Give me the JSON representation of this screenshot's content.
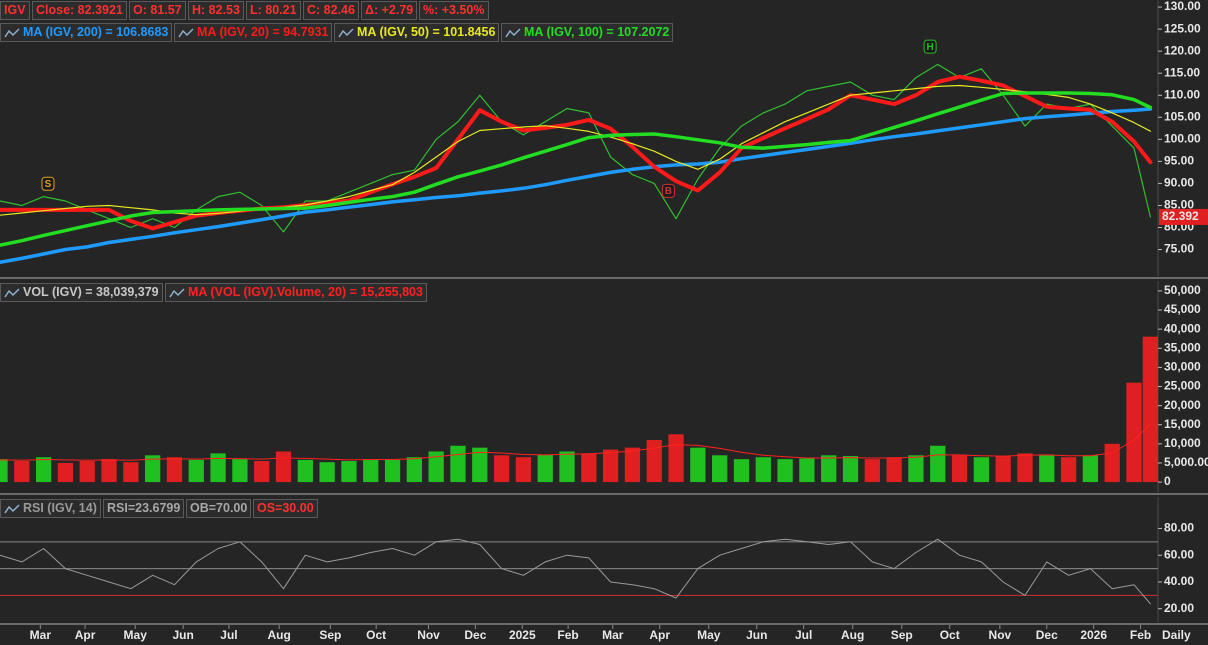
{
  "chart_data": [
    {
      "type": "line",
      "xlim": [
        0,
        106.2
      ],
      "ylim": [
        69,
        131.6
      ],
      "yticks": [
        {
          "value": 75,
          "label": "75.00"
        },
        {
          "value": 80,
          "label": "80.00"
        },
        {
          "value": 85,
          "label": "85.00"
        },
        {
          "value": 90,
          "label": "90.00"
        },
        {
          "value": 95,
          "label": "95.00"
        },
        {
          "value": 100,
          "label": "100.00"
        },
        {
          "value": 105,
          "label": "105.00"
        },
        {
          "value": 110,
          "label": "110.00"
        },
        {
          "value": 115,
          "label": "115.00"
        },
        {
          "value": 120,
          "label": "120.00"
        },
        {
          "value": 125,
          "label": "125.00"
        },
        {
          "value": 130,
          "label": "130.00"
        }
      ],
      "x": [
        0,
        2,
        4,
        6,
        8,
        10,
        12,
        14,
        16,
        18,
        20,
        22,
        24,
        26,
        28,
        30,
        32,
        34,
        36,
        38,
        40,
        42,
        44,
        46,
        48,
        50,
        52,
        54,
        56,
        58,
        60,
        62,
        64,
        66,
        68,
        70,
        72,
        74,
        76,
        78,
        80,
        82,
        84,
        86,
        88,
        90,
        92,
        94,
        96,
        98,
        100,
        102,
        104,
        105.5
      ],
      "header_color": "#ff3030",
      "header": [
        {
          "text": "Close: 82.3921"
        },
        {
          "text": "O: 81.57"
        },
        {
          "text": "H: 82.53"
        },
        {
          "text": "L: 80.21"
        },
        {
          "text": "C: 82.46"
        },
        {
          "text": "Δ: +2.79"
        },
        {
          "text": "%: +3.50%"
        }
      ],
      "last_label": "82.392",
      "last_label_color": "#e02020",
      "annotations": [
        {
          "text": "S",
          "x": 4.4,
          "y": 89.8,
          "color": "#e0a020"
        },
        {
          "text": "B",
          "x": 61.3,
          "y": 88.2,
          "color": "#d03030"
        },
        {
          "text": "H",
          "x": 85.3,
          "y": 120.9,
          "color": "#20c020"
        }
      ],
      "series": [
        {
          "name": "IGV",
          "color": "#2fbf2f",
          "line_width": 1.2,
          "values": [
            86,
            85,
            87,
            86,
            84,
            82,
            80,
            82,
            80,
            84,
            87,
            88,
            85,
            79,
            86,
            86,
            88,
            90,
            92,
            93,
            100,
            104,
            110,
            104,
            101,
            104,
            107,
            106,
            96,
            92,
            90,
            82,
            91,
            98,
            103,
            106,
            108,
            111,
            112,
            113,
            110,
            109,
            114,
            117,
            114,
            116,
            110,
            103,
            108,
            107,
            108,
            103,
            98,
            82.3921
          ]
        },
        {
          "name": "MA (IGV, 200) = 106.8683",
          "color": "#1f9bff",
          "line_width": 3.5,
          "values": [
            72.1,
            73,
            74,
            75,
            75.6,
            76.6,
            77.3,
            78,
            78.8,
            79.5,
            80.2,
            81,
            81.8,
            82.6,
            83.5,
            84,
            84.6,
            85.2,
            85.8,
            86.3,
            86.8,
            87.2,
            87.8,
            88.3,
            88.9,
            89.7,
            90.7,
            91.6,
            92.5,
            93.2,
            93.8,
            94.2,
            94.4,
            94.8,
            95.6,
            96.3,
            97,
            97.7,
            98.4,
            99.1,
            99.9,
            100.6,
            101.2,
            101.9,
            102.6,
            103.3,
            104,
            104.7,
            105.1,
            105.5,
            105.9,
            106.3,
            106.6,
            106.8683
          ]
        },
        {
          "name": "MA (IGV, 20) = 94.7931",
          "color": "#ff1a1a",
          "line_width": 4,
          "values": [
            84,
            84,
            84,
            84,
            84,
            84,
            81.5,
            79.8,
            81.2,
            82.7,
            83.3,
            83.8,
            84.3,
            84.6,
            85.1,
            85.6,
            86.1,
            88,
            89.8,
            91.5,
            93.5,
            100,
            106.6,
            104,
            102,
            102.6,
            103.3,
            104.4,
            102.4,
            98.3,
            93.8,
            90.5,
            88.4,
            92.5,
            98,
            100.3,
            102.5,
            104.6,
            106.8,
            110,
            109,
            108,
            110,
            113,
            114.2,
            113.3,
            112.2,
            109.8,
            107.4,
            107,
            106.7,
            104,
            99.5,
            94.7931
          ]
        },
        {
          "name": "MA (IGV, 50) = 101.8456",
          "color": "#e8e820",
          "line_width": 1.2,
          "values": [
            82.8,
            83.3,
            83.8,
            84.3,
            84.8,
            85,
            84.5,
            84,
            83.3,
            82.9,
            83.2,
            83.7,
            84.2,
            84.6,
            85.1,
            86,
            87,
            88.4,
            89.7,
            92.5,
            96,
            99.5,
            102,
            102.4,
            102.8,
            103.1,
            102.5,
            101.8,
            100.5,
            99,
            97.3,
            95,
            93.2,
            95.5,
            99,
            101.5,
            104,
            106,
            108,
            110,
            110.5,
            111,
            111.5,
            112,
            112.2,
            111.8,
            111.3,
            110.8,
            110.2,
            109.5,
            108,
            106,
            103.8,
            101.8456
          ]
        },
        {
          "name": "MA (IGV, 100) = 107.2072",
          "color": "#22dd22",
          "line_width": 3.5,
          "values": [
            76,
            77,
            78.2,
            79.3,
            80.4,
            81.5,
            82.6,
            83.4,
            83.6,
            83.8,
            84,
            84.1,
            84.2,
            84.3,
            84.4,
            85,
            85.7,
            86.4,
            87,
            88,
            89.8,
            91.5,
            92.8,
            94.2,
            95.8,
            97.3,
            98.8,
            100.4,
            100.9,
            101.1,
            101.2,
            100.6,
            99.9,
            99.2,
            98.2,
            98,
            98.4,
            98.8,
            99.3,
            99.7,
            101.2,
            102.7,
            104.2,
            105.8,
            107.3,
            108.9,
            110.4,
            110.5,
            110.5,
            110.5,
            110.4,
            110.1,
            109,
            107.2072
          ]
        }
      ]
    },
    {
      "type": "bar",
      "xlim": [
        0,
        106.2
      ],
      "ylim": [
        -2600,
        52600
      ],
      "yticks": [
        0,
        {
          "value": 5000,
          "label": "5,000.00"
        },
        {
          "value": 10000,
          "label": "10,000"
        },
        {
          "value": 15000,
          "label": "15,000"
        },
        {
          "value": 20000,
          "label": "20,000"
        },
        {
          "value": 25000,
          "label": "25,000"
        },
        {
          "value": 30000,
          "label": "30,000"
        },
        {
          "value": 35000,
          "label": "35,000"
        },
        {
          "value": 40000,
          "label": "40,000"
        },
        {
          "value": 45000,
          "label": "45,000"
        },
        {
          "value": 50000,
          "label": "50,000"
        }
      ],
      "x": [
        0,
        2,
        4,
        6,
        8,
        10,
        12,
        14,
        16,
        18,
        20,
        22,
        24,
        26,
        28,
        30,
        32,
        34,
        36,
        38,
        40,
        42,
        44,
        46,
        48,
        50,
        52,
        54,
        56,
        58,
        60,
        62,
        64,
        66,
        68,
        70,
        72,
        74,
        76,
        78,
        80,
        82,
        84,
        86,
        88,
        90,
        92,
        94,
        96,
        98,
        100,
        102,
        104,
        105.5
      ],
      "up_color": "#20c020",
      "down_color": "#e02020",
      "series": [
        {
          "name": "VOL (IGV) = 38,039,379",
          "color": "#c8c8c8",
          "values": [
            6000,
            5500,
            6500,
            5000,
            5500,
            6000,
            5200,
            7000,
            6500,
            5800,
            7500,
            6000,
            5500,
            8000,
            5800,
            5200,
            5500,
            6000,
            5800,
            6500,
            8000,
            9500,
            9000,
            7000,
            6500,
            7200,
            8000,
            7500,
            8500,
            9000,
            11000,
            12500,
            9000,
            7000,
            6000,
            6500,
            6000,
            6200,
            7000,
            6800,
            6000,
            6500,
            7000,
            9500,
            7000,
            6500,
            6800,
            7500,
            7200,
            6500,
            7000,
            10000,
            26000,
            38039.379
          ]
        },
        {
          "name": "MA (VOL (IGV).Volume, 20) = 15,255,803",
          "color": "#ff2020",
          "style": "line",
          "line_width": 1,
          "values": [
            5800,
            5700,
            5900,
            5800,
            5700,
            5800,
            5700,
            6000,
            6100,
            6000,
            6200,
            6100,
            6000,
            6300,
            6200,
            6000,
            5800,
            5900,
            5900,
            6100,
            6600,
            7200,
            7800,
            7600,
            7200,
            7100,
            7300,
            7400,
            7700,
            8100,
            8900,
            9800,
            9600,
            8800,
            7800,
            7000,
            6600,
            6300,
            6300,
            6400,
            6300,
            6300,
            6500,
            7100,
            7100,
            6900,
            6800,
            7000,
            7100,
            6900,
            6900,
            7600,
            11000,
            15255.803
          ]
        }
      ]
    },
    {
      "type": "line",
      "xlim": [
        0,
        106.2
      ],
      "ylim": [
        10.1,
        103.5
      ],
      "yticks": [
        {
          "value": 20,
          "label": "20.00"
        },
        {
          "value": 40,
          "label": "40.00"
        },
        {
          "value": 60,
          "label": "60.00"
        },
        {
          "value": 80,
          "label": "80.00"
        }
      ],
      "xticks": [
        {
          "value": 3.7,
          "label": "Mar"
        },
        {
          "value": 7.8,
          "label": "Apr"
        },
        {
          "value": 12.4,
          "label": "May"
        },
        {
          "value": 16.8,
          "label": "Jun"
        },
        {
          "value": 21,
          "label": "Jul"
        },
        {
          "value": 25.6,
          "label": "Aug"
        },
        {
          "value": 30.3,
          "label": "Sep"
        },
        {
          "value": 34.5,
          "label": "Oct"
        },
        {
          "value": 39.3,
          "label": "Nov"
        },
        {
          "value": 43.6,
          "label": "Dec"
        },
        {
          "value": 47.9,
          "label": "2025"
        },
        {
          "value": 52.1,
          "label": "Feb"
        },
        {
          "value": 56.2,
          "label": "Mar"
        },
        {
          "value": 60.5,
          "label": "Apr"
        },
        {
          "value": 65,
          "label": "May"
        },
        {
          "value": 69.4,
          "label": "Jun"
        },
        {
          "value": 73.7,
          "label": "Jul"
        },
        {
          "value": 78.2,
          "label": "Aug"
        },
        {
          "value": 82.7,
          "label": "Sep"
        },
        {
          "value": 87.1,
          "label": "Oct"
        },
        {
          "value": 91.7,
          "label": "Nov"
        },
        {
          "value": 96,
          "label": "Dec"
        },
        {
          "value": 100.3,
          "label": "2026"
        },
        {
          "value": 104.6,
          "label": "Feb"
        }
      ],
      "x_label": "Daily",
      "x": [
        0,
        2,
        4,
        6,
        8,
        10,
        12,
        14,
        16,
        18,
        20,
        22,
        24,
        26,
        28,
        30,
        32,
        34,
        36,
        38,
        40,
        42,
        44,
        46,
        48,
        50,
        52,
        54,
        56,
        58,
        60,
        62,
        64,
        66,
        68,
        70,
        72,
        74,
        76,
        78,
        80,
        82,
        84,
        86,
        88,
        90,
        92,
        94,
        96,
        98,
        100,
        102,
        104,
        105.5
      ],
      "header": [
        {
          "text": "RSI=23.6799",
          "color": "#a8a8a8"
        },
        {
          "text": "OB=70.00",
          "color": "#a8a8a8"
        },
        {
          "text": "OS=30.00",
          "color": "#ff3030"
        }
      ],
      "levels": [
        {
          "value": 70,
          "color": "#8a8a8a"
        },
        {
          "value": 50,
          "color": "#8a8a8a"
        },
        {
          "value": 30,
          "color": "#d03030"
        }
      ],
      "series": [
        {
          "name": "RSI (IGV, 14)",
          "color": "#9a9a9a",
          "line_width": 1,
          "values": [
            60,
            55,
            65,
            50,
            45,
            40,
            35,
            45,
            38,
            55,
            65,
            70,
            55,
            35,
            60,
            55,
            58,
            62,
            65,
            60,
            70,
            72,
            68,
            50,
            45,
            55,
            60,
            58,
            40,
            38,
            35,
            28,
            50,
            60,
            65,
            70,
            72,
            70,
            68,
            70,
            55,
            50,
            62,
            72,
            60,
            55,
            40,
            30,
            55,
            45,
            50,
            35,
            38,
            23.6799
          ]
        }
      ]
    }
  ]
}
